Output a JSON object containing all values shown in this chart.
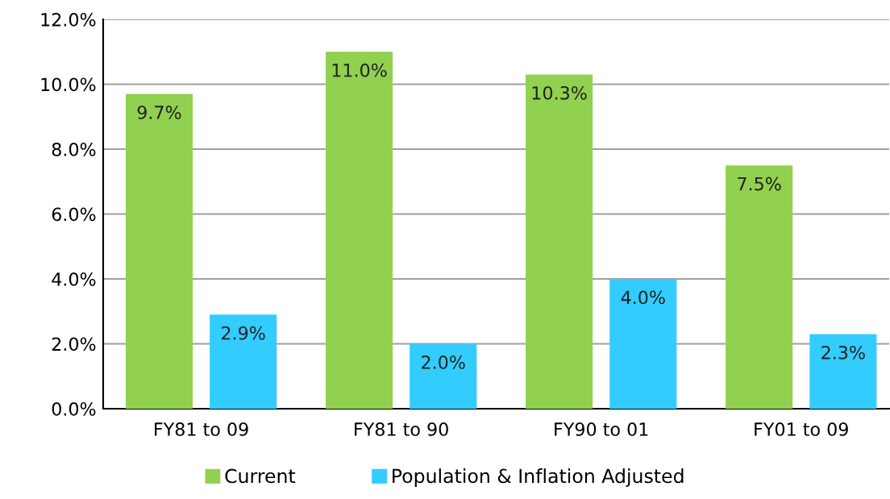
{
  "chart_data": {
    "type": "bar",
    "categories": [
      "FY81 to 09",
      "FY81 to 90",
      "FY90 to 01",
      "FY01 to 09"
    ],
    "series": [
      {
        "name": "Current",
        "color": "#92d050",
        "values": [
          9.7,
          11.0,
          10.3,
          7.5
        ],
        "value_labels": [
          "9.7%",
          "11.0%",
          "10.3%",
          "7.5%"
        ]
      },
      {
        "name": "Population & Inflation Adjusted",
        "color": "#33ccff",
        "values": [
          2.9,
          2.0,
          4.0,
          2.3
        ],
        "value_labels": [
          "2.9%",
          "2.0%",
          "4.0%",
          "2.3%"
        ]
      }
    ],
    "ylim": [
      0,
      12
    ],
    "yticks": [
      {
        "value": 0,
        "label": "0.0%"
      },
      {
        "value": 2,
        "label": "2.0%"
      },
      {
        "value": 4,
        "label": "4.0%"
      },
      {
        "value": 6,
        "label": "6.0%"
      },
      {
        "value": 8,
        "label": "8.0%"
      },
      {
        "value": 10,
        "label": "10.0%"
      },
      {
        "value": 12,
        "label": "12.0%"
      }
    ],
    "grid": "y",
    "legend": "bottom"
  }
}
